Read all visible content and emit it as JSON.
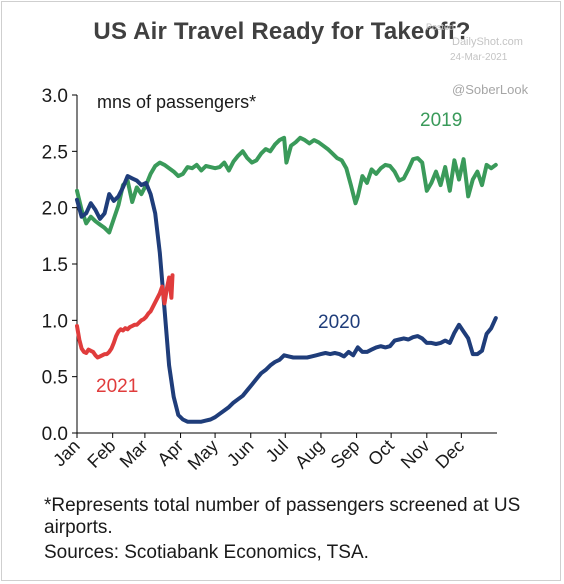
{
  "title": "US Air Travel Ready for Takeoff?",
  "watermark": {
    "posted": "Posted",
    "site": "DailyShot.com",
    "date": "24-Mar-2021",
    "handle": "@SoberLook"
  },
  "notes": {
    "footnote": "*Represents total number of passengers screened at US airports.",
    "sources": "Sources: Scotiabank Economics, TSA."
  },
  "chart_data": {
    "type": "line",
    "title": "US Air Travel Ready for Takeoff?",
    "ylabel": "mns of passengers*",
    "ylim": [
      0,
      3.0
    ],
    "yticks": [
      "0.0",
      "0.5",
      "1.0",
      "1.5",
      "2.0",
      "2.5",
      "3.0"
    ],
    "xlim": [
      1,
      366
    ],
    "xticks": [
      {
        "label": "Jan",
        "day": 1
      },
      {
        "label": "Feb",
        "day": 32
      },
      {
        "label": "Mar",
        "day": 60
      },
      {
        "label": "Apr",
        "day": 91
      },
      {
        "label": "May",
        "day": 121
      },
      {
        "label": "Jun",
        "day": 152
      },
      {
        "label": "Jul",
        "day": 182
      },
      {
        "label": "Aug",
        "day": 213
      },
      {
        "label": "Sep",
        "day": 244
      },
      {
        "label": "Oct",
        "day": 274
      },
      {
        "label": "Nov",
        "day": 305
      },
      {
        "label": "Dec",
        "day": 335
      }
    ],
    "grid": false,
    "series": [
      {
        "name": "2019",
        "color": "#3a9a5a",
        "x": [
          1,
          5,
          9,
          13,
          17,
          21,
          25,
          29,
          33,
          37,
          41,
          45,
          49,
          53,
          57,
          61,
          65,
          69,
          73,
          77,
          81,
          85,
          89,
          93,
          97,
          101,
          105,
          109,
          113,
          117,
          121,
          125,
          129,
          133,
          137,
          141,
          145,
          149,
          153,
          157,
          161,
          165,
          169,
          173,
          177,
          181,
          183,
          187,
          191,
          195,
          199,
          203,
          207,
          211,
          215,
          219,
          223,
          227,
          231,
          235,
          239,
          243,
          245,
          249,
          253,
          257,
          261,
          265,
          269,
          273,
          277,
          281,
          285,
          289,
          293,
          297,
          301,
          305,
          309,
          313,
          317,
          321,
          325,
          329,
          333,
          337,
          341,
          345,
          349,
          353,
          357,
          361,
          365
        ],
        "y": [
          2.15,
          1.98,
          1.86,
          1.92,
          1.88,
          1.85,
          1.82,
          1.78,
          1.9,
          2.02,
          2.2,
          2.24,
          2.05,
          2.18,
          2.12,
          2.2,
          2.3,
          2.37,
          2.4,
          2.38,
          2.35,
          2.32,
          2.28,
          2.3,
          2.36,
          2.35,
          2.38,
          2.33,
          2.37,
          2.36,
          2.35,
          2.36,
          2.4,
          2.33,
          2.41,
          2.46,
          2.5,
          2.44,
          2.4,
          2.42,
          2.48,
          2.52,
          2.5,
          2.56,
          2.6,
          2.62,
          2.4,
          2.55,
          2.58,
          2.62,
          2.6,
          2.57,
          2.6,
          2.58,
          2.55,
          2.52,
          2.48,
          2.44,
          2.42,
          2.35,
          2.2,
          2.04,
          2.1,
          2.28,
          2.22,
          2.34,
          2.3,
          2.35,
          2.38,
          2.37,
          2.32,
          2.24,
          2.26,
          2.34,
          2.43,
          2.44,
          2.4,
          2.15,
          2.22,
          2.32,
          2.2,
          2.36,
          2.15,
          2.42,
          2.25,
          2.43,
          2.1,
          2.25,
          2.32,
          2.2,
          2.38,
          2.35,
          2.38
        ]
      },
      {
        "name": "2020",
        "color": "#1f3d7a",
        "x": [
          1,
          5,
          9,
          13,
          17,
          21,
          25,
          29,
          33,
          37,
          41,
          45,
          49,
          53,
          57,
          61,
          65,
          69,
          73,
          77,
          81,
          85,
          89,
          93,
          97,
          101,
          105,
          109,
          113,
          117,
          121,
          125,
          129,
          133,
          137,
          141,
          145,
          149,
          153,
          157,
          161,
          165,
          169,
          173,
          177,
          181,
          185,
          189,
          193,
          197,
          201,
          205,
          209,
          213,
          217,
          221,
          225,
          229,
          233,
          237,
          241,
          245,
          249,
          253,
          257,
          261,
          265,
          269,
          273,
          277,
          281,
          285,
          289,
          293,
          297,
          301,
          305,
          309,
          313,
          317,
          321,
          325,
          329,
          333,
          337,
          341,
          345,
          349,
          353,
          357,
          361,
          365
        ],
        "y": [
          2.07,
          1.92,
          1.95,
          2.04,
          1.98,
          1.9,
          1.95,
          2.12,
          2.06,
          2.1,
          2.18,
          2.28,
          2.26,
          2.24,
          2.2,
          2.22,
          2.12,
          1.95,
          1.6,
          1.1,
          0.6,
          0.32,
          0.16,
          0.12,
          0.1,
          0.1,
          0.1,
          0.1,
          0.11,
          0.12,
          0.14,
          0.17,
          0.2,
          0.23,
          0.27,
          0.3,
          0.33,
          0.38,
          0.43,
          0.48,
          0.53,
          0.56,
          0.6,
          0.63,
          0.65,
          0.69,
          0.68,
          0.67,
          0.67,
          0.67,
          0.67,
          0.68,
          0.69,
          0.7,
          0.71,
          0.7,
          0.71,
          0.7,
          0.68,
          0.72,
          0.69,
          0.76,
          0.72,
          0.72,
          0.74,
          0.76,
          0.77,
          0.76,
          0.77,
          0.82,
          0.83,
          0.84,
          0.83,
          0.85,
          0.86,
          0.84,
          0.8,
          0.8,
          0.79,
          0.8,
          0.82,
          0.8,
          0.89,
          0.96,
          0.9,
          0.84,
          0.7,
          0.7,
          0.73,
          0.88,
          0.93,
          1.02
        ]
      },
      {
        "name": "2021",
        "color": "#e03c3c",
        "x": [
          1,
          3,
          5,
          7,
          9,
          11,
          13,
          15,
          17,
          19,
          21,
          23,
          25,
          27,
          29,
          31,
          33,
          35,
          37,
          39,
          41,
          43,
          45,
          47,
          49,
          51,
          53,
          55,
          57,
          59,
          61,
          63,
          65,
          67,
          69,
          71,
          73,
          75,
          77,
          79,
          81,
          83,
          84
        ],
        "y": [
          0.95,
          0.83,
          0.75,
          0.72,
          0.71,
          0.74,
          0.73,
          0.72,
          0.69,
          0.67,
          0.68,
          0.69,
          0.7,
          0.7,
          0.72,
          0.75,
          0.8,
          0.86,
          0.9,
          0.92,
          0.91,
          0.93,
          0.92,
          0.94,
          0.95,
          0.96,
          0.96,
          0.98,
          1.0,
          1.01,
          1.03,
          1.06,
          1.08,
          1.12,
          1.16,
          1.2,
          1.24,
          1.3,
          1.15,
          1.28,
          1.38,
          1.2,
          1.4
        ]
      }
    ]
  }
}
